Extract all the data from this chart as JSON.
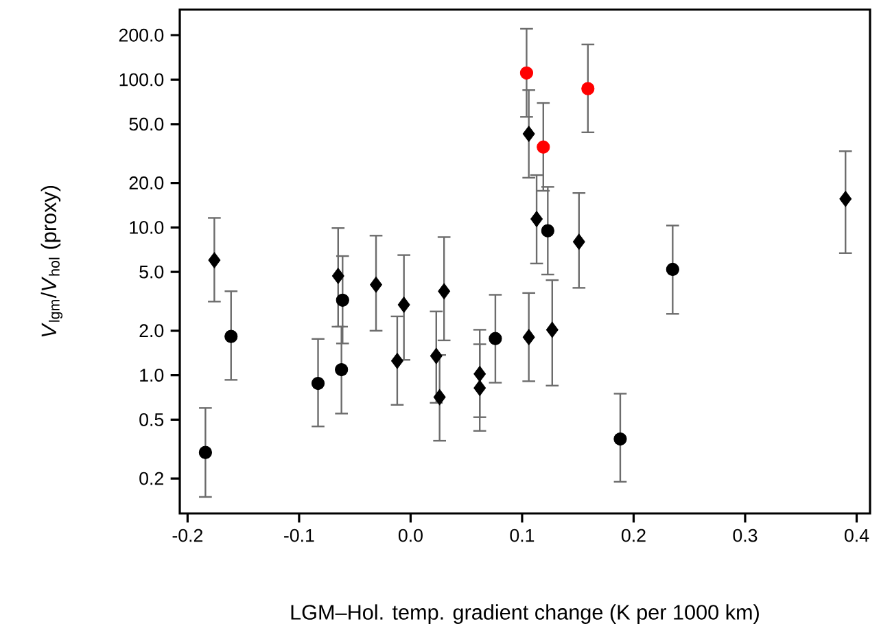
{
  "chart_data": {
    "type": "scatter",
    "xlabel": "LGM–Hol. temp. gradient change (K per 1000 km)",
    "ylabel": "*V*$_{lgm}$/*V*$_{hol}$ (proxy)",
    "log": "y",
    "xlim": [
      -0.207,
      0.412
    ],
    "ylim": [
      0.116,
      298
    ],
    "xticks": [
      -0.2,
      -0.1,
      {
        "value": 0,
        "label": "0.0"
      },
      0.1,
      0.2,
      0.3,
      0.4
    ],
    "yticks": [
      {
        "value": 0.2,
        "label": "0.2"
      },
      {
        "value": 0.5,
        "label": "0.5"
      },
      {
        "value": 1,
        "label": "1.0"
      },
      {
        "value": 2,
        "label": "2.0"
      },
      {
        "value": 5,
        "label": "5.0"
      },
      {
        "value": 10,
        "label": "10.0"
      },
      {
        "value": 20,
        "label": "20.0"
      },
      {
        "value": 50,
        "label": "50.0"
      },
      {
        "value": 100,
        "label": "100.0"
      },
      {
        "value": 200,
        "label": "200.0"
      }
    ],
    "series": [
      {
        "color": "#000000",
        "marker": "circle",
        "x": [
          -0.184,
          -0.161,
          -0.083,
          -0.061,
          -0.062,
          0.076,
          0.123,
          0.188,
          0.235
        ],
        "values": [
          0.3,
          1.83,
          0.88,
          3.22,
          1.09,
          1.77,
          9.5,
          0.37,
          5.2
        ],
        "errors": [
          [
            0.15,
            0.6
          ],
          [
            0.93,
            3.7
          ],
          [
            0.45,
            1.76
          ],
          [
            1.64,
            6.4
          ],
          [
            0.55,
            2.13
          ],
          [
            0.89,
            3.5
          ],
          [
            4.8,
            18.8
          ],
          [
            0.19,
            0.75
          ],
          [
            2.6,
            10.3
          ]
        ]
      },
      {
        "color": "#000000",
        "marker": "diamond",
        "x": [
          -0.176,
          -0.065,
          -0.031,
          -0.012,
          -0.006,
          0.023,
          0.026,
          0.03,
          0.062,
          0.062,
          0.106,
          0.127,
          0.106,
          0.113,
          0.151,
          0.39
        ],
        "values": [
          6.0,
          4.7,
          4.1,
          1.25,
          3.0,
          1.35,
          0.71,
          3.7,
          1.02,
          0.82,
          1.81,
          2.03,
          43,
          11.4,
          8.0,
          15.6
        ],
        "errors": [
          [
            3.15,
            11.6
          ],
          [
            2.13,
            9.9
          ],
          [
            2.0,
            8.8
          ],
          [
            0.63,
            2.5
          ],
          [
            1.27,
            6.5
          ],
          [
            0.65,
            2.7
          ],
          [
            0.36,
            1.37
          ],
          [
            1.72,
            8.6
          ],
          [
            0.52,
            2.03
          ],
          [
            0.42,
            1.62
          ],
          [
            0.91,
            3.6
          ],
          [
            0.85,
            4.4
          ],
          [
            21.7,
            85
          ],
          [
            5.7,
            22.6
          ],
          [
            3.9,
            17.1
          ],
          [
            6.7,
            32.8
          ]
        ]
      },
      {
        "color": "#ff0000",
        "marker": "circle",
        "x": [
          0.104,
          0.119,
          0.159
        ],
        "values": [
          111,
          35,
          87
        ],
        "errors": [
          [
            56,
            221
          ],
          [
            17.7,
            69.5
          ],
          [
            44,
            173
          ]
        ]
      }
    ]
  }
}
